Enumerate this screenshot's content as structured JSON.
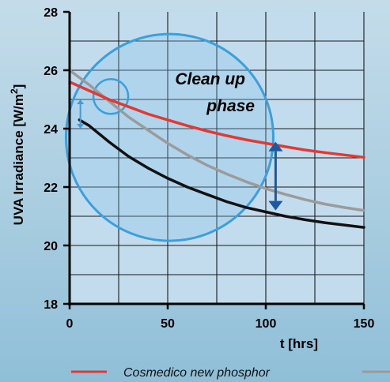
{
  "chart_data": {
    "type": "line",
    "title": "",
    "xlabel": "t [hrs]",
    "ylabel_main": "UVA Irradiance [W/m",
    "ylabel_sup": "2",
    "ylabel_close": "]",
    "xlim": [
      0,
      150
    ],
    "ylim": [
      18,
      28
    ],
    "xticks": [
      0,
      50,
      100,
      150
    ],
    "yticks": [
      18,
      20,
      22,
      24,
      26,
      28
    ],
    "grid": true,
    "annotation": {
      "line1": "Clean up",
      "line2": "phase"
    },
    "series": [
      {
        "name": "Cosmedico new phosphor",
        "color": "#e03a33",
        "x": [
          0,
          5,
          10,
          20,
          30,
          40,
          50,
          60,
          70,
          80,
          90,
          100,
          110,
          120,
          130,
          140,
          150
        ],
        "y": [
          25.6,
          25.45,
          25.3,
          25.0,
          24.75,
          24.5,
          24.3,
          24.1,
          23.92,
          23.76,
          23.62,
          23.5,
          23.38,
          23.27,
          23.18,
          23.1,
          23.02
        ]
      },
      {
        "name": "",
        "color": "#9b9b9b",
        "x": [
          0,
          5,
          10,
          20,
          30,
          40,
          50,
          60,
          70,
          80,
          90,
          100,
          110,
          120,
          130,
          140,
          150
        ],
        "y": [
          26.0,
          25.75,
          25.5,
          24.95,
          24.4,
          23.95,
          23.5,
          23.1,
          22.75,
          22.45,
          22.18,
          21.95,
          21.75,
          21.57,
          21.42,
          21.3,
          21.2
        ]
      },
      {
        "name": "",
        "color": "#111111",
        "x": [
          5,
          10,
          20,
          30,
          40,
          50,
          60,
          70,
          80,
          90,
          100,
          110,
          120,
          130,
          140,
          150
        ],
        "y": [
          24.3,
          24.1,
          23.55,
          23.05,
          22.65,
          22.3,
          22.0,
          21.75,
          21.5,
          21.3,
          21.15,
          21.0,
          20.88,
          20.78,
          20.7,
          20.62
        ]
      }
    ]
  }
}
